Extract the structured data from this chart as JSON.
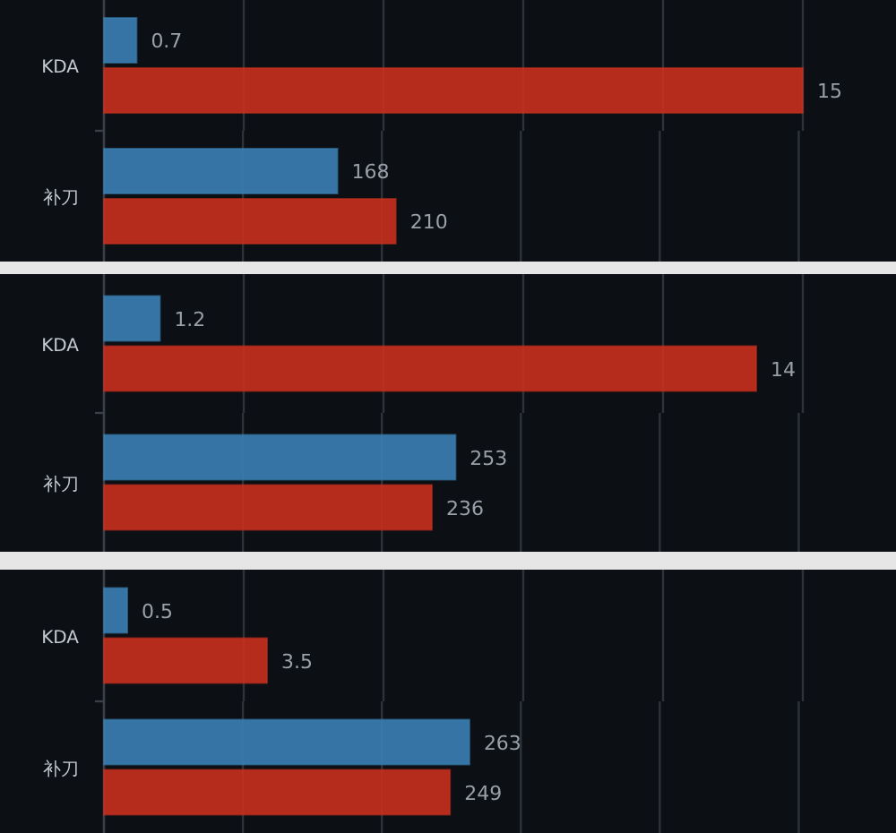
{
  "chart_data": [
    {
      "type": "bar",
      "orientation": "horizontal",
      "categories": [
        "KDA"
      ],
      "series": [
        {
          "color": "#3a80b4",
          "values": [
            0.7
          ]
        },
        {
          "color": "#c8301e",
          "values": [
            15
          ]
        }
      ],
      "data_labels": true,
      "xlim": [
        0,
        17
      ],
      "xticks": [
        {
          "value": 0,
          "label": null
        },
        {
          "value": 3,
          "label": null
        },
        {
          "value": 6,
          "label": null
        },
        {
          "value": 9,
          "label": null
        },
        {
          "value": 12,
          "label": null
        },
        {
          "value": 15,
          "label": null
        }
      ],
      "grid": "x"
    },
    {
      "type": "bar",
      "orientation": "horizontal",
      "categories": [
        "补刀"
      ],
      "series": [
        {
          "color": "#3a80b4",
          "values": [
            168
          ]
        },
        {
          "color": "#c8301e",
          "values": [
            210
          ]
        }
      ],
      "data_labels": true,
      "xlim": [
        0,
        570
      ],
      "xticks": [
        {
          "value": 0,
          "label": null
        },
        {
          "value": 100,
          "label": null
        },
        {
          "value": 200,
          "label": null
        },
        {
          "value": 300,
          "label": null
        },
        {
          "value": 400,
          "label": null
        },
        {
          "value": 500,
          "label": null
        }
      ],
      "grid": "x"
    },
    {
      "type": "bar",
      "orientation": "horizontal",
      "categories": [
        "KDA"
      ],
      "series": [
        {
          "color": "#3a80b4",
          "values": [
            1.2
          ]
        },
        {
          "color": "#c8301e",
          "values": [
            14
          ]
        }
      ],
      "data_labels": true,
      "xlim": [
        0,
        17
      ],
      "xticks": [
        {
          "value": 0,
          "label": null
        },
        {
          "value": 3,
          "label": null
        },
        {
          "value": 6,
          "label": null
        },
        {
          "value": 9,
          "label": null
        },
        {
          "value": 12,
          "label": null
        },
        {
          "value": 15,
          "label": null
        }
      ],
      "grid": "x"
    },
    {
      "type": "bar",
      "orientation": "horizontal",
      "categories": [
        "补刀"
      ],
      "series": [
        {
          "color": "#3a80b4",
          "values": [
            253
          ]
        },
        {
          "color": "#c8301e",
          "values": [
            236
          ]
        }
      ],
      "data_labels": true,
      "xlim": [
        0,
        570
      ],
      "xticks": [
        {
          "value": 0,
          "label": null
        },
        {
          "value": 100,
          "label": null
        },
        {
          "value": 200,
          "label": null
        },
        {
          "value": 300,
          "label": null
        },
        {
          "value": 400,
          "label": null
        },
        {
          "value": 500,
          "label": null
        }
      ],
      "grid": "x"
    },
    {
      "type": "bar",
      "orientation": "horizontal",
      "categories": [
        "KDA"
      ],
      "series": [
        {
          "color": "#3a80b4",
          "values": [
            0.5
          ]
        },
        {
          "color": "#c8301e",
          "values": [
            3.5
          ]
        }
      ],
      "data_labels": true,
      "xlim": [
        0,
        17
      ],
      "xticks": [
        {
          "value": 0,
          "label": null
        },
        {
          "value": 3,
          "label": null
        },
        {
          "value": 6,
          "label": null
        },
        {
          "value": 9,
          "label": null
        },
        {
          "value": 12,
          "label": null
        },
        {
          "value": 15,
          "label": null
        }
      ],
      "grid": "x"
    },
    {
      "type": "bar",
      "orientation": "horizontal",
      "categories": [
        "补刀"
      ],
      "series": [
        {
          "color": "#3a80b4",
          "values": [
            263
          ]
        },
        {
          "color": "#c8301e",
          "values": [
            249
          ]
        }
      ],
      "data_labels": true,
      "xlim": [
        0,
        570
      ],
      "xticks": [
        {
          "value": 0,
          "label": null
        },
        {
          "value": 100,
          "label": null
        },
        {
          "value": 200,
          "label": null
        },
        {
          "value": 300,
          "label": null
        },
        {
          "value": 400,
          "label": null
        },
        {
          "value": 500,
          "label": null
        }
      ],
      "grid": "x"
    }
  ]
}
